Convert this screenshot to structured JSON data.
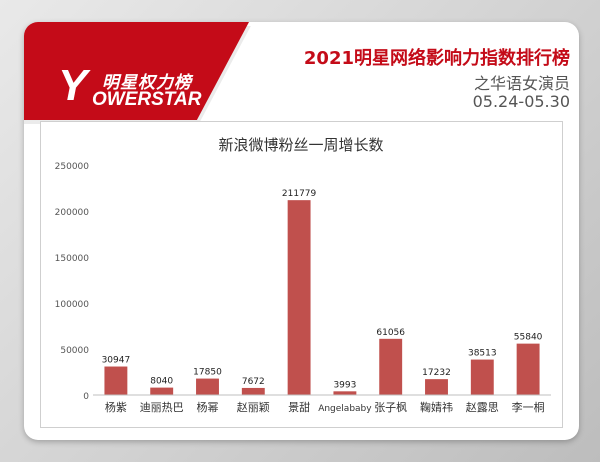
{
  "header": {
    "logo_cn": "明星权力榜",
    "logo_en": "OWERSTAR",
    "logo_mark": "Y",
    "title": "2021明星网络影响力指数排行榜",
    "subtitle": "之华语女演员",
    "date_range": "05.24-05.30"
  },
  "colors": {
    "brand_red": "#c40b18",
    "bar": "#c0504d"
  },
  "chart_data": {
    "type": "bar",
    "title": "新浪微博粉丝一周增长数",
    "xlabel": "",
    "ylabel": "",
    "categories": [
      "杨紫",
      "迪丽热巴",
      "杨幂",
      "赵丽颖",
      "景甜",
      "Angelababy",
      "张子枫",
      "鞠婧祎",
      "赵露思",
      "李一桐"
    ],
    "values": [
      30947,
      8040,
      17850,
      7672,
      211779,
      3993,
      61056,
      17232,
      38513,
      55840
    ],
    "data_labels": [
      "30947",
      "8040",
      "17850",
      "7672",
      "211779",
      "3993",
      "61056",
      "17232",
      "38513",
      "55840"
    ],
    "ylim": [
      0,
      250000
    ],
    "yticks": [
      "0",
      "50000",
      "100000",
      "150000",
      "200000",
      "250000"
    ],
    "grid": false,
    "legend": "none"
  }
}
